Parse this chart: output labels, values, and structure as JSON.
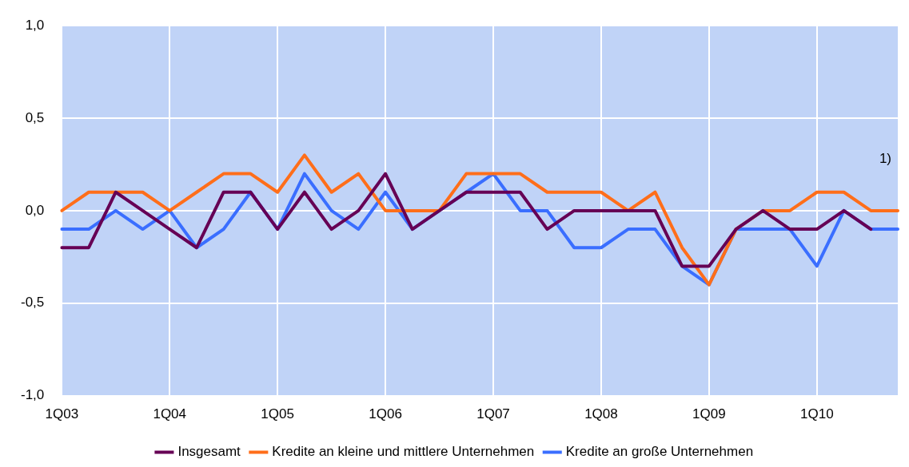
{
  "chart_data": {
    "type": "line",
    "categories": [
      "1Q03",
      null,
      null,
      null,
      "1Q04",
      null,
      null,
      null,
      "1Q05",
      null,
      null,
      null,
      "1Q06",
      null,
      null,
      null,
      "1Q07",
      null,
      null,
      null,
      "1Q08",
      null,
      null,
      null,
      "1Q09",
      null,
      null,
      null,
      "1Q10",
      null,
      null,
      null
    ],
    "series": [
      {
        "name": "Insgesamt",
        "color": "#660055",
        "values": [
          -0.2,
          -0.2,
          0.1,
          0.0,
          -0.1,
          -0.2,
          0.1,
          0.1,
          -0.1,
          0.1,
          -0.1,
          0.0,
          0.2,
          -0.1,
          0.0,
          0.1,
          0.1,
          0.1,
          -0.1,
          0.0,
          0.0,
          0.0,
          0.0,
          -0.3,
          -0.3,
          -0.1,
          0.0,
          -0.1,
          -0.1,
          0.0,
          -0.1,
          null
        ]
      },
      {
        "name": "Kredite an kleine und mittlere Unternehmen",
        "color": "#ff6e1a",
        "values": [
          0.0,
          0.1,
          0.1,
          0.1,
          0.0,
          0.1,
          0.2,
          0.2,
          0.1,
          0.3,
          0.1,
          0.2,
          0.0,
          0.0,
          0.0,
          0.2,
          0.2,
          0.2,
          0.1,
          0.1,
          0.1,
          0.0,
          0.1,
          -0.2,
          -0.4,
          -0.1,
          0.0,
          0.0,
          0.1,
          0.1,
          0.0,
          0.0
        ]
      },
      {
        "name": "Kredite an große Unternehmen",
        "color": "#3a6eff",
        "values": [
          -0.1,
          -0.1,
          0.0,
          -0.1,
          0.0,
          -0.2,
          -0.1,
          0.1,
          -0.1,
          0.2,
          0.0,
          -0.1,
          0.1,
          -0.1,
          0.0,
          0.1,
          0.2,
          0.0,
          0.0,
          -0.2,
          -0.2,
          -0.1,
          -0.1,
          -0.3,
          -0.4,
          -0.1,
          -0.1,
          -0.1,
          -0.3,
          0.0,
          -0.1,
          -0.1
        ]
      }
    ],
    "ylim": [
      -1.0,
      1.0
    ],
    "yticks": [
      {
        "value": -1.0,
        "label": "-1,0"
      },
      {
        "value": -0.5,
        "label": "-0,5"
      },
      {
        "value": 0.0,
        "label": "0,0"
      },
      {
        "value": 0.5,
        "label": "0,5"
      },
      {
        "value": 1.0,
        "label": "1,0"
      }
    ],
    "grid": true,
    "legend": "bottom",
    "marker": "none",
    "line_style": "solid",
    "annotations": [
      "1)"
    ]
  }
}
